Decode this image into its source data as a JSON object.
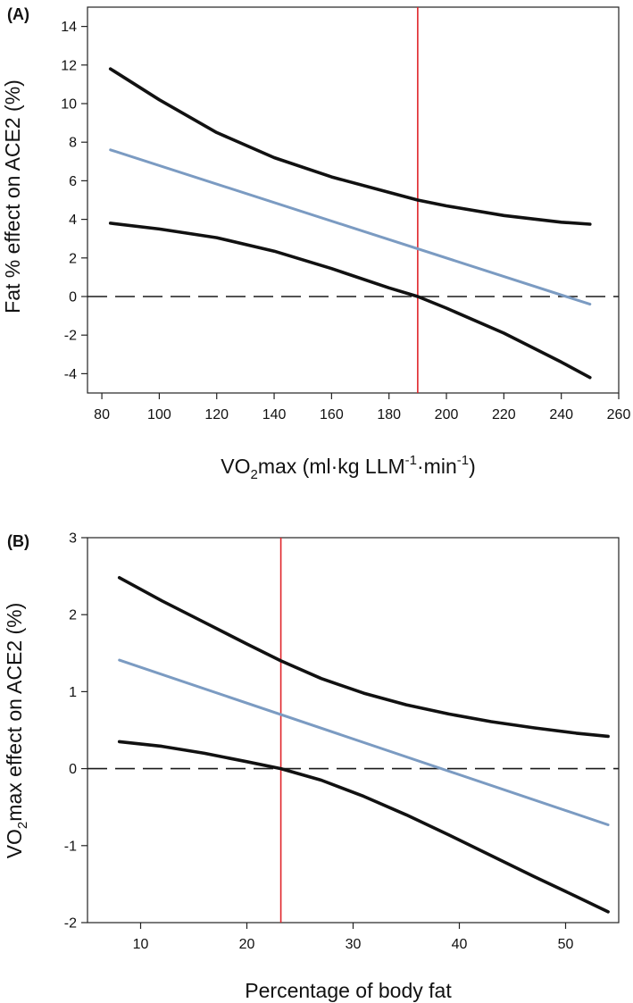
{
  "colors": {
    "ci": "#111111",
    "estimate": "#7b9bc2",
    "marker": "#e0262b",
    "reference": "#1a1a1a"
  },
  "chart_data": [
    {
      "type": "line",
      "panel_label": "(A)",
      "xlabel": {
        "base": "VO",
        "sub": "2",
        "middle": "max (ml·kg LLM",
        "sup1": "-1",
        "between": "·min",
        "sup2": "-1",
        "end": ")"
      },
      "ylabel": "Fat % effect on ACE2 (%)",
      "xlim": [
        75,
        260
      ],
      "ylim": [
        -5,
        15
      ],
      "xticks": [
        80,
        100,
        120,
        140,
        160,
        180,
        200,
        220,
        240,
        260
      ],
      "yticks": [
        -4,
        -2,
        0,
        2,
        4,
        6,
        8,
        10,
        12,
        14
      ],
      "reference_line": {
        "y": 0,
        "style": "dashed"
      },
      "vertical_marker": {
        "x": 190
      },
      "series": [
        {
          "name": "upper-ci",
          "role": "ci",
          "x": [
            83,
            100,
            120,
            140,
            160,
            180,
            190,
            200,
            220,
            240,
            250
          ],
          "y": [
            11.8,
            10.2,
            8.5,
            7.2,
            6.2,
            5.4,
            5.0,
            4.7,
            4.2,
            3.85,
            3.75
          ]
        },
        {
          "name": "estimate",
          "role": "estimate",
          "x": [
            83,
            250
          ],
          "y": [
            7.6,
            -0.4
          ]
        },
        {
          "name": "lower-ci",
          "role": "ci",
          "x": [
            83,
            100,
            120,
            140,
            160,
            180,
            190,
            200,
            220,
            240,
            250
          ],
          "y": [
            3.8,
            3.5,
            3.05,
            2.35,
            1.45,
            0.45,
            0.0,
            -0.6,
            -1.9,
            -3.4,
            -4.2
          ]
        }
      ]
    },
    {
      "type": "line",
      "panel_label": "(B)",
      "xlabel": "Percentage of body fat",
      "ylabel": {
        "base": "VO",
        "sub": "2",
        "end": "max effect on ACE2 (%)"
      },
      "xlim": [
        5,
        55
      ],
      "ylim": [
        -2,
        3
      ],
      "xticks": [
        10,
        20,
        30,
        40,
        50
      ],
      "yticks": [
        -2,
        -1,
        0,
        1,
        2,
        3
      ],
      "reference_line": {
        "y": 0,
        "style": "dashed"
      },
      "vertical_marker": {
        "x": 23.2
      },
      "series": [
        {
          "name": "upper-ci",
          "role": "ci",
          "x": [
            8,
            12,
            16,
            20,
            23.2,
            27,
            31,
            35,
            39,
            43,
            47,
            51,
            54
          ],
          "y": [
            2.48,
            2.18,
            1.9,
            1.62,
            1.4,
            1.17,
            0.98,
            0.83,
            0.71,
            0.61,
            0.53,
            0.46,
            0.42
          ]
        },
        {
          "name": "estimate",
          "role": "estimate",
          "x": [
            8,
            54
          ],
          "y": [
            1.41,
            -0.73
          ]
        },
        {
          "name": "lower-ci",
          "role": "ci",
          "x": [
            8,
            12,
            16,
            20,
            23.2,
            27,
            31,
            35,
            39,
            43,
            47,
            51,
            54
          ],
          "y": [
            0.35,
            0.29,
            0.2,
            0.09,
            0.0,
            -0.15,
            -0.36,
            -0.6,
            -0.86,
            -1.13,
            -1.4,
            -1.66,
            -1.86
          ]
        }
      ]
    }
  ]
}
